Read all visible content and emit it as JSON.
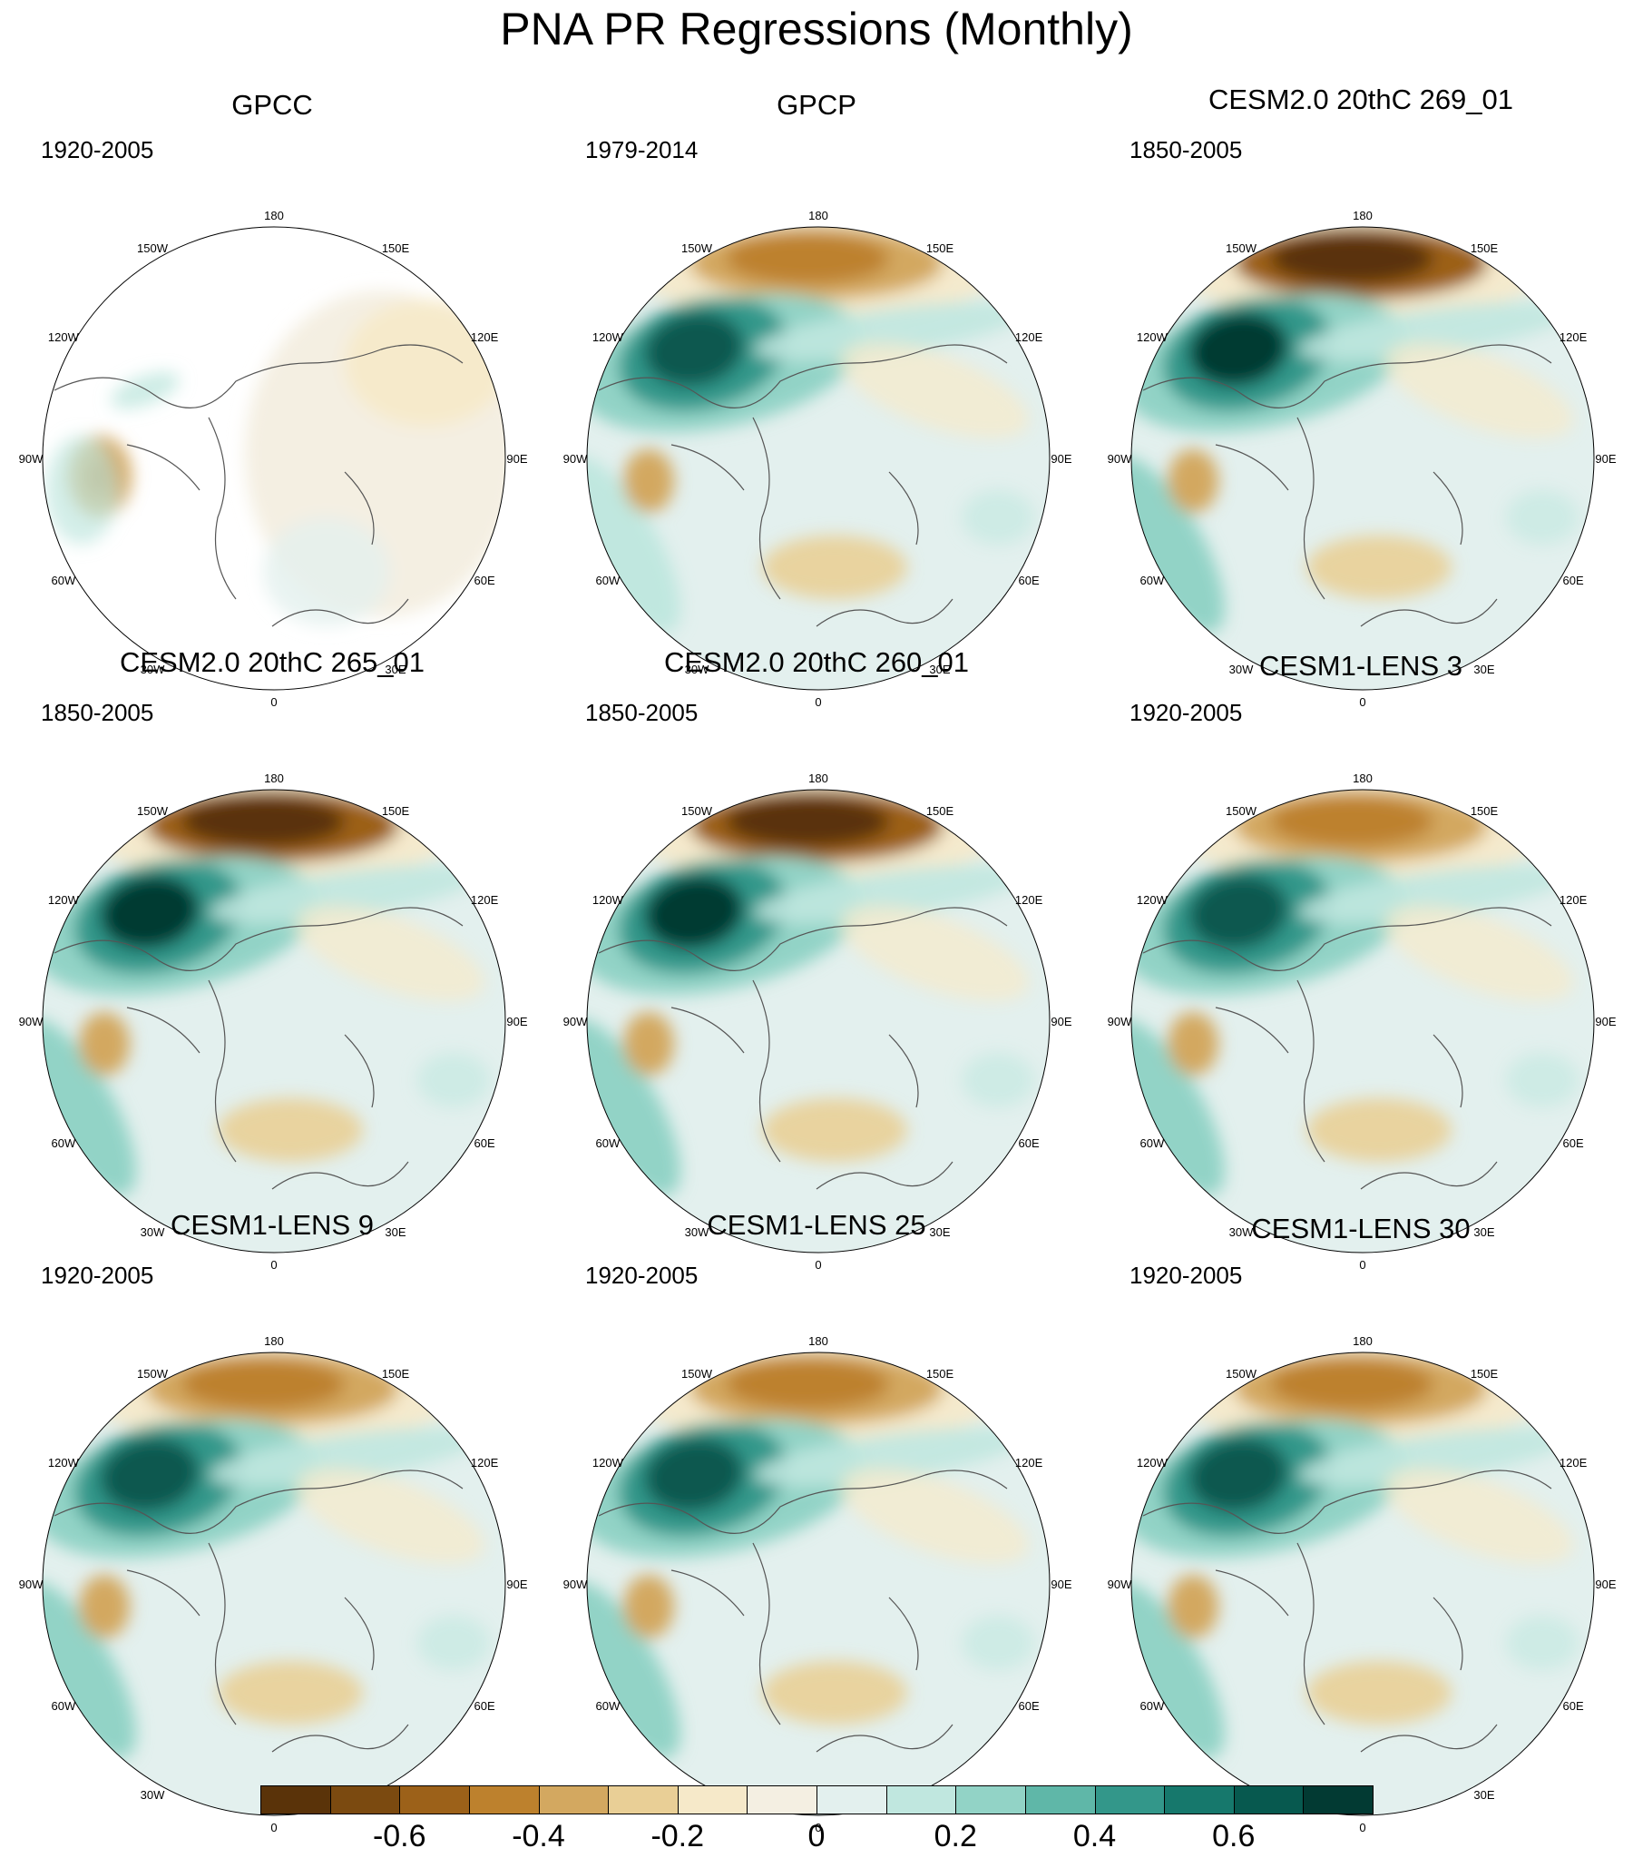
{
  "title": "PNA PR Regressions (Monthly)",
  "lon_labels": [
    "180",
    "150E",
    "120E",
    "90E",
    "60E",
    "30E",
    "0",
    "30W",
    "60W",
    "90W",
    "120W",
    "150W"
  ],
  "panels": [
    {
      "title": "GPCC",
      "period": "1920-2005",
      "style": "gpcc",
      "intensity": 0.4
    },
    {
      "title": "GPCP",
      "period": "1979-2014",
      "style": "gpcp",
      "intensity": 0.8
    },
    {
      "title": "CESM2.0 20thC 269_01",
      "period": "1850-2005",
      "style": "model",
      "intensity": 1.0
    },
    {
      "title": "CESM2.0 20thC 265_01",
      "period": "1850-2005",
      "style": "model",
      "intensity": 1.0
    },
    {
      "title": "CESM2.0 20thC 260_01",
      "period": "1850-2005",
      "style": "model",
      "intensity": 0.95
    },
    {
      "title": "CESM1-LENS 3",
      "period": "1920-2005",
      "style": "model",
      "intensity": 0.9
    },
    {
      "title": "CESM1-LENS 9",
      "period": "1920-2005",
      "style": "model",
      "intensity": 0.85
    },
    {
      "title": "CESM1-LENS 25",
      "period": "1920-2005",
      "style": "model",
      "intensity": 0.85
    },
    {
      "title": "CESM1-LENS 30",
      "period": "1920-2005",
      "style": "model",
      "intensity": 0.8
    }
  ],
  "colorbar": {
    "colors": [
      "#5a3309",
      "#7b4a10",
      "#9c6119",
      "#bd812d",
      "#d3a860",
      "#e9cf96",
      "#f6e9c9",
      "#f4efe2",
      "#e3f0ee",
      "#c0e7df",
      "#92d3c6",
      "#5fb7a8",
      "#33978a",
      "#16786c",
      "#07594f",
      "#023a33"
    ],
    "ticks": [
      "-0.6",
      "-0.4",
      "-0.2",
      "0",
      "0.2",
      "0.4",
      "0.6"
    ],
    "tick_values": [
      -0.6,
      -0.4,
      -0.2,
      0,
      0.2,
      0.4,
      0.6
    ],
    "range": [
      -0.8,
      0.8
    ]
  }
}
